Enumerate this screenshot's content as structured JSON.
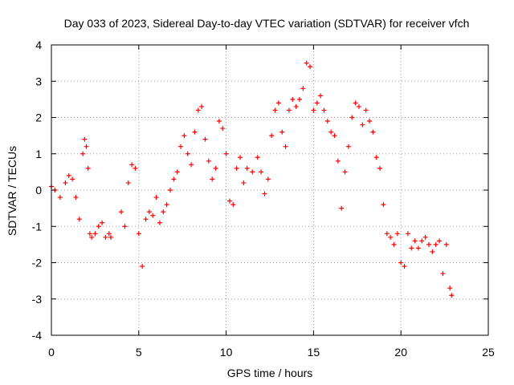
{
  "chart_data": {
    "type": "scatter",
    "title": "Day 033 of 2023, Sidereal Day-to-day VTEC variation (SDTVAR) for receiver vfch",
    "xlabel": "GPS time / hours",
    "ylabel": "SDTVAR / TECUs",
    "xlim": [
      0,
      25
    ],
    "ylim": [
      -4,
      4
    ],
    "xticks": [
      "0",
      "5",
      "10",
      "15",
      "20",
      "25"
    ],
    "yticks": [
      "4",
      "3",
      "2",
      "1",
      "0",
      "-1",
      "-2",
      "-3",
      "-4"
    ],
    "grid": true,
    "marker": "+",
    "color": "#ff0000",
    "series": [
      {
        "name": "SDTVAR",
        "x": [
          0.0,
          0.2,
          0.5,
          0.8,
          1.0,
          1.2,
          1.4,
          1.6,
          1.8,
          1.9,
          2.0,
          2.1,
          2.2,
          2.3,
          2.5,
          2.7,
          2.9,
          3.1,
          3.3,
          3.4,
          4.0,
          4.2,
          4.4,
          4.6,
          4.8,
          5.0,
          5.2,
          5.4,
          5.6,
          5.8,
          6.0,
          6.2,
          6.4,
          6.6,
          6.8,
          7.0,
          7.2,
          7.4,
          7.6,
          7.8,
          8.0,
          8.2,
          8.4,
          8.6,
          8.8,
          9.0,
          9.2,
          9.4,
          9.6,
          9.8,
          10.0,
          10.2,
          10.4,
          10.6,
          10.8,
          11.0,
          11.2,
          11.5,
          11.8,
          12.0,
          12.2,
          12.4,
          12.6,
          12.8,
          13.0,
          13.2,
          13.4,
          13.6,
          13.8,
          14.0,
          14.2,
          14.4,
          14.6,
          14.8,
          15.0,
          15.2,
          15.4,
          15.6,
          15.8,
          16.0,
          16.2,
          16.4,
          16.6,
          16.8,
          17.0,
          17.2,
          17.4,
          17.6,
          17.8,
          18.0,
          18.2,
          18.4,
          18.6,
          18.8,
          19.0,
          19.2,
          19.4,
          19.6,
          19.8,
          20.0,
          20.2,
          20.4,
          20.6,
          20.8,
          21.0,
          21.2,
          21.4,
          21.6,
          21.8,
          22.0,
          22.2,
          22.4,
          22.6,
          22.8,
          22.9
        ],
        "y": [
          0.1,
          0.0,
          -0.2,
          0.2,
          0.4,
          0.3,
          -0.2,
          -0.8,
          1.0,
          1.4,
          1.2,
          0.6,
          -1.2,
          -1.3,
          -1.2,
          -1.0,
          -0.9,
          -1.3,
          -1.2,
          -1.3,
          -0.6,
          -1.0,
          0.2,
          0.7,
          0.6,
          -1.2,
          -2.1,
          -0.8,
          -0.6,
          -0.7,
          -0.2,
          -0.9,
          -0.6,
          -0.4,
          0.0,
          0.3,
          0.5,
          1.2,
          1.5,
          1.0,
          0.7,
          1.6,
          2.2,
          2.3,
          1.4,
          0.8,
          0.3,
          0.6,
          1.9,
          1.7,
          1.0,
          -0.3,
          -0.4,
          0.6,
          0.9,
          0.2,
          0.6,
          0.5,
          0.9,
          0.5,
          -0.1,
          0.3,
          1.5,
          2.2,
          2.4,
          1.6,
          1.2,
          2.2,
          2.5,
          2.3,
          2.5,
          2.8,
          3.5,
          3.4,
          2.2,
          2.4,
          2.6,
          2.2,
          1.9,
          1.6,
          1.5,
          0.8,
          -0.5,
          0.5,
          1.2,
          2.0,
          2.4,
          2.3,
          1.8,
          2.2,
          1.9,
          1.6,
          0.9,
          0.6,
          -0.4,
          -1.2,
          -1.3,
          -1.5,
          -1.2,
          -2.0,
          -2.1,
          -1.2,
          -1.6,
          -1.4,
          -1.6,
          -1.4,
          -1.3,
          -1.5,
          -1.7,
          -1.5,
          -1.4,
          -2.3,
          -1.5,
          -2.7,
          -2.9
        ]
      }
    ]
  }
}
